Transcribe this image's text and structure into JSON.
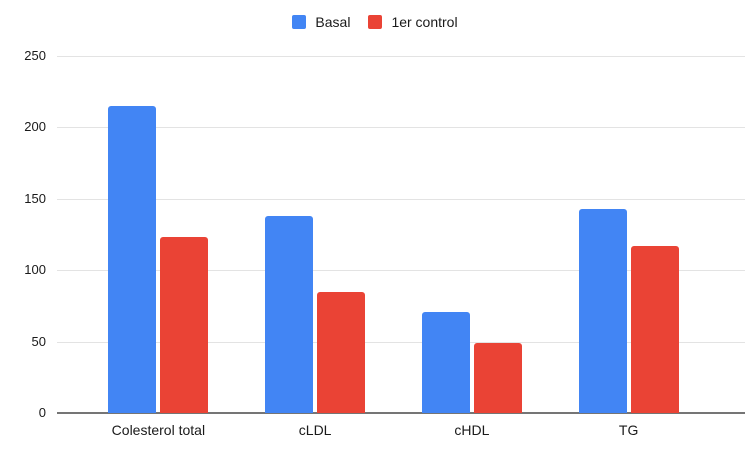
{
  "chart_data": {
    "type": "bar",
    "title": "",
    "xlabel": "",
    "ylabel": "",
    "categories": [
      "Colesterol total",
      "cLDL",
      "cHDL",
      "TG"
    ],
    "series": [
      {
        "name": "Basal",
        "color": "#4285F4",
        "values": [
          215,
          138,
          71,
          143
        ]
      },
      {
        "name": "1er control",
        "color": "#EA4335",
        "values": [
          123,
          85,
          49,
          117
        ]
      }
    ],
    "ylim": [
      0,
      250
    ],
    "yticks": [
      0,
      50,
      100,
      150,
      200,
      250
    ],
    "grid": true,
    "legend_position": "top",
    "colors": {
      "background": "#ffffff",
      "gridline": "#e3e3e3",
      "zero_axis": "#757575",
      "text": "#1a1a1a"
    }
  }
}
